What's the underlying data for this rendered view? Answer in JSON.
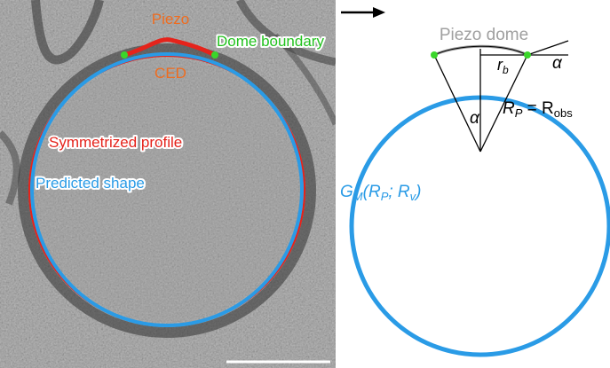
{
  "left_panel": {
    "labels": {
      "piezo": "Piezo",
      "ced": "CED",
      "dome_boundary": "Dome boundary",
      "symmetrized_profile": "Symmetrized profile",
      "predicted_shape": "Predicted shape"
    }
  },
  "right_panel": {
    "labels": {
      "piezo_dome": "Piezo dome",
      "r_b": "r",
      "r_b_sub": "b",
      "alpha_right": "α",
      "alpha_center": "α",
      "rp_eq": "R",
      "rp_sub": "P",
      "equals": " = R",
      "obs_sub": "obs",
      "gm_G": "G",
      "gm_M_sub": "M",
      "gm_open": "(R",
      "gm_P_sub": "P",
      "gm_mid": "; R",
      "gm_v_sub": "v",
      "gm_close": ")"
    }
  },
  "colors": {
    "piezo_label": "#ef6c1f",
    "dome_boundary": "#22c11e",
    "symmetrized": "#e5231b",
    "predicted": "#2a9be6",
    "piezo_dome_label": "#a0a0a0",
    "dome_point": "#3ad62a"
  }
}
